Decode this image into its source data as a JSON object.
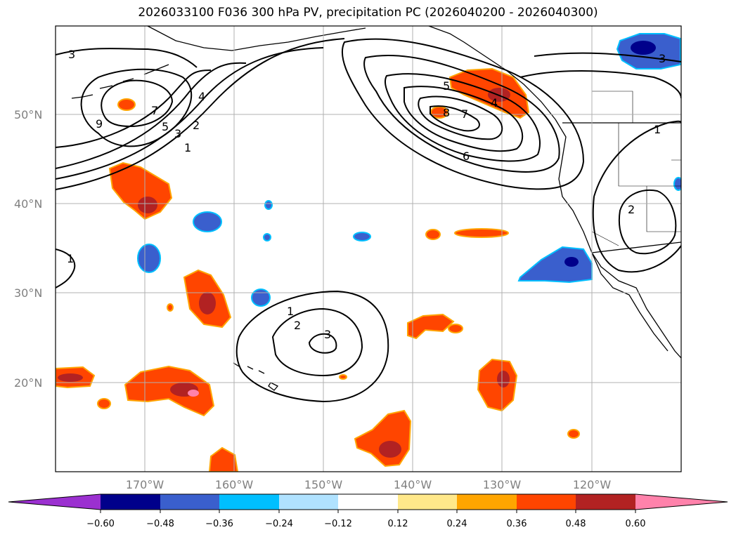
{
  "title": "2026033100 F036 300 hPa PV, precipitation PC (2026040200 - 2026040300)",
  "lat_labels": [
    "50°N",
    "40°N",
    "30°N",
    "20°N"
  ],
  "lon_labels": [
    "170°W",
    "160°W",
    "150°W",
    "140°W",
    "130°W",
    "120°W"
  ],
  "colorbar": {
    "ticks": [
      "−0.60",
      "−0.48",
      "−0.36",
      "−0.24",
      "−0.12",
      "0.12",
      "0.24",
      "0.36",
      "0.48",
      "0.60"
    ],
    "colors": [
      "#9b30d0",
      "#00008b",
      "#3a5fcd",
      "#00bfff",
      "#b0e2ff",
      "#ffffff",
      "#ffe88a",
      "#ffa500",
      "#ff4500",
      "#b22222",
      "#ff82ab"
    ]
  },
  "pv_contour_labels": {
    "west_trough": [
      "3",
      "9",
      "7",
      "5",
      "4",
      "3",
      "2",
      "1"
    ],
    "gulf_of_alaska": [
      "5",
      "4",
      "8",
      "7",
      "6"
    ],
    "west_edge": [
      "1"
    ],
    "central_pacific": [
      "1",
      "2",
      "3"
    ],
    "california": [
      "1",
      "2"
    ],
    "northeast_corner": [
      "3"
    ]
  }
}
